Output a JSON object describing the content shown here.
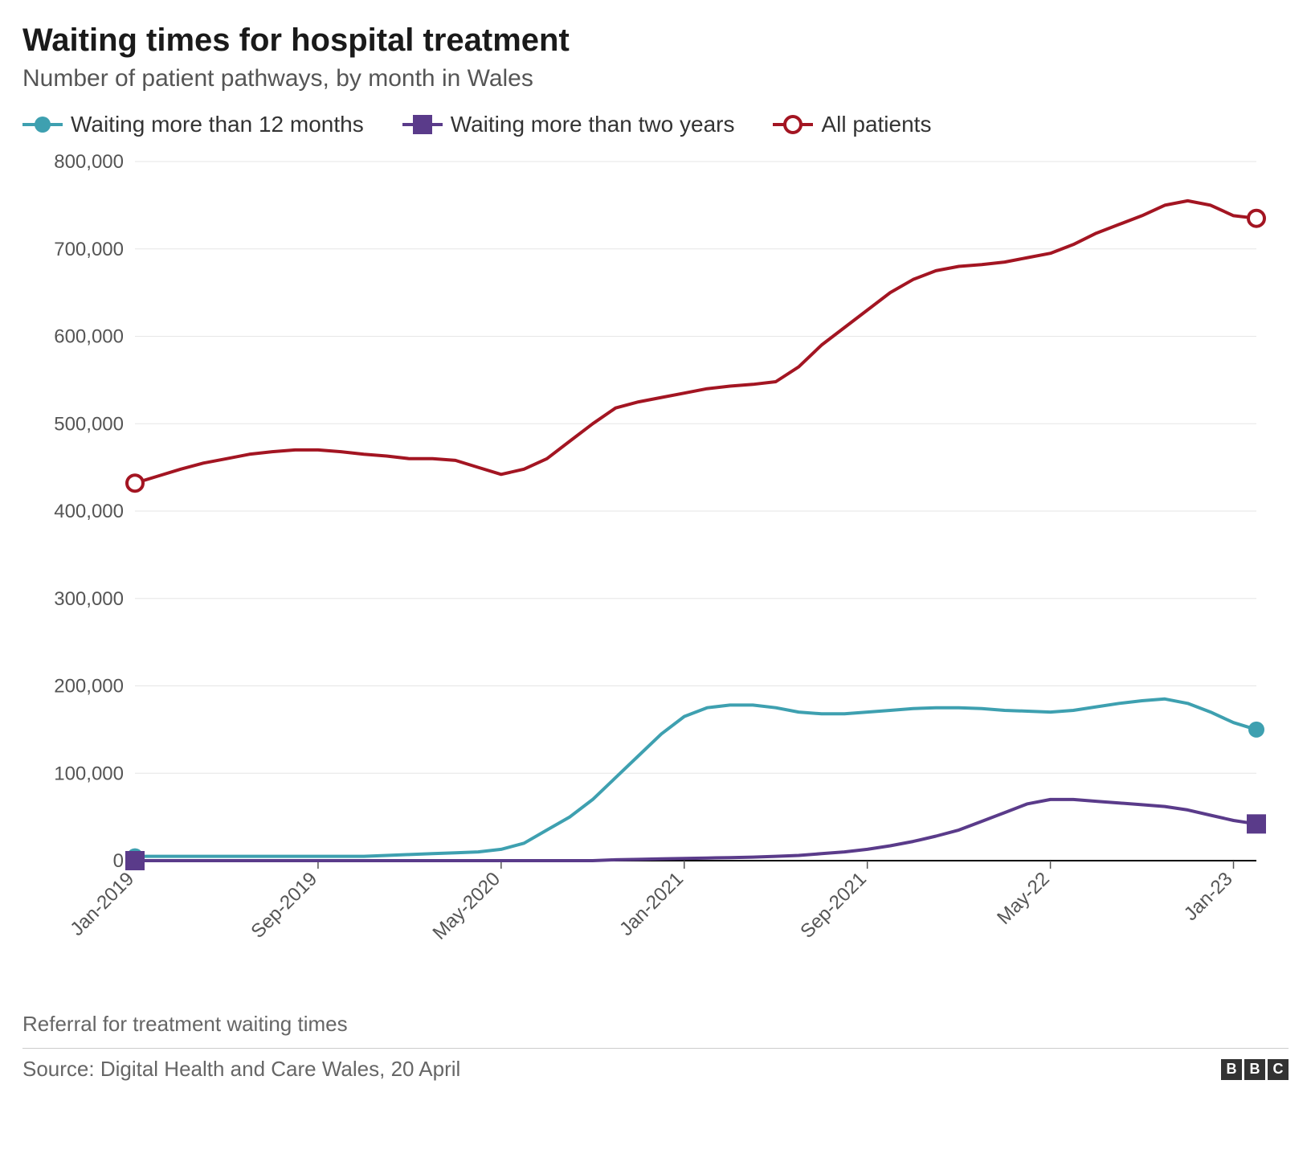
{
  "title": "Waiting times for hospital treatment",
  "subtitle": "Number of patient pathways, by month in Wales",
  "footer_note": "Referral for treatment waiting times",
  "source": "Source: Digital Health and Care Wales, 20 April",
  "logo_letters": [
    "B",
    "B",
    "C"
  ],
  "chart": {
    "type": "line",
    "background_color": "#ffffff",
    "grid_color": "#e6e6e6",
    "axis_color": "#555555",
    "baseline_color": "#000000",
    "label_color": "#555555",
    "label_fontsize": 24,
    "title_fontsize": 40,
    "subtitle_fontsize": 30,
    "line_width": 4,
    "ylim": [
      0,
      800000
    ],
    "ytick_step": 100000,
    "ytick_labels": [
      "0",
      "100,000",
      "200,000",
      "300,000",
      "400,000",
      "500,000",
      "600,000",
      "700,000",
      "800,000"
    ],
    "x_categories": [
      "Jan-2019",
      "Feb-2019",
      "Mar-2019",
      "Apr-2019",
      "May-2019",
      "Jun-2019",
      "Jul-2019",
      "Aug-2019",
      "Sep-2019",
      "Oct-2019",
      "Nov-2019",
      "Dec-2019",
      "Jan-2020",
      "Feb-2020",
      "Mar-2020",
      "Apr-2020",
      "May-2020",
      "Jun-2020",
      "Jul-2020",
      "Aug-2020",
      "Sep-2020",
      "Oct-2020",
      "Nov-2020",
      "Dec-2020",
      "Jan-2021",
      "Feb-2021",
      "Mar-2021",
      "Apr-2021",
      "May-2021",
      "Jun-2021",
      "Jul-2021",
      "Aug-2021",
      "Sep-2021",
      "Oct-2021",
      "Nov-2021",
      "Dec-2021",
      "Jan-2022",
      "Feb-2022",
      "Mar-2022",
      "Apr-2022",
      "May-2022",
      "Jun-2022",
      "Jul-2022",
      "Aug-2022",
      "Sep-2022",
      "Oct-2022",
      "Nov-2022",
      "Dec-2022",
      "Jan-2023",
      "Feb-2023"
    ],
    "x_tick_indices": [
      0,
      8,
      16,
      24,
      32,
      40,
      48
    ],
    "x_tick_labels": [
      "Jan-2019",
      "Sep-2019",
      "May-2020",
      "Jan-2021",
      "Sep-2021",
      "May-22",
      "Jan-23"
    ],
    "series": [
      {
        "id": "over_12_months",
        "label": "Waiting more than 12 months",
        "color": "#3ea0b0",
        "marker": "circle-filled",
        "marker_size": 10,
        "endpoint_markers": true,
        "values": [
          5000,
          5000,
          5000,
          5000,
          5000,
          5000,
          5000,
          5000,
          5000,
          5000,
          5000,
          6000,
          7000,
          8000,
          9000,
          10000,
          13000,
          20000,
          35000,
          50000,
          70000,
          95000,
          120000,
          145000,
          165000,
          175000,
          178000,
          178000,
          175000,
          170000,
          168000,
          168000,
          170000,
          172000,
          174000,
          175000,
          175000,
          174000,
          172000,
          171000,
          170000,
          172000,
          176000,
          180000,
          183000,
          185000,
          180000,
          170000,
          158000,
          150000
        ]
      },
      {
        "id": "over_two_years",
        "label": "Waiting more than two years",
        "color": "#5a3b8a",
        "marker": "square-filled",
        "marker_size": 12,
        "endpoint_markers": true,
        "values": [
          0,
          0,
          0,
          0,
          0,
          0,
          0,
          0,
          0,
          0,
          0,
          0,
          0,
          0,
          0,
          0,
          0,
          0,
          0,
          0,
          0,
          1000,
          1500,
          2000,
          2500,
          3000,
          3500,
          4000,
          5000,
          6000,
          8000,
          10000,
          13000,
          17000,
          22000,
          28000,
          35000,
          45000,
          55000,
          65000,
          70000,
          70000,
          68000,
          66000,
          64000,
          62000,
          58000,
          52000,
          46000,
          42000
        ]
      },
      {
        "id": "all_patients",
        "label": "All patients",
        "color": "#a31522",
        "marker": "circle-open",
        "marker_size": 10,
        "endpoint_markers": true,
        "values": [
          432000,
          440000,
          448000,
          455000,
          460000,
          465000,
          468000,
          470000,
          470000,
          468000,
          465000,
          463000,
          460000,
          460000,
          458000,
          450000,
          442000,
          448000,
          460000,
          480000,
          500000,
          518000,
          525000,
          530000,
          535000,
          540000,
          543000,
          545000,
          548000,
          565000,
          590000,
          610000,
          630000,
          650000,
          665000,
          675000,
          680000,
          682000,
          685000,
          690000,
          695000,
          705000,
          718000,
          728000,
          738000,
          750000,
          755000,
          750000,
          738000,
          735000
        ]
      }
    ]
  }
}
